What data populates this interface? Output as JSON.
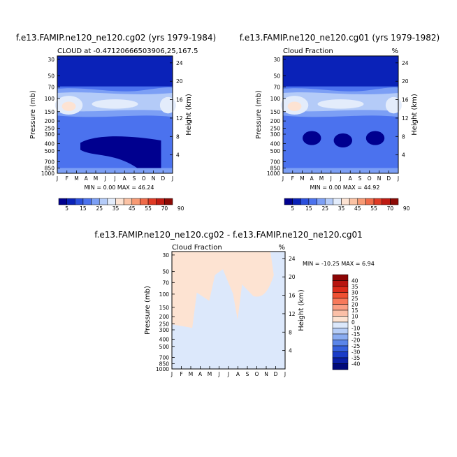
{
  "figure": {
    "panels": [
      {
        "title": "f.e13.FAMIP.ne120_ne120.cg02 (yrs 1979-1984)",
        "subtitle_left": "CLOUD at -0.47120666503906,25,167.5",
        "subtitle_right": "",
        "min_label": "MIN =",
        "min_value": "0.00",
        "max_label": "MAX =",
        "max_value": "46.24"
      },
      {
        "title": "f.e13.FAMIP.ne120_ne120.cg01 (yrs 1979-1982)",
        "subtitle_left": "Cloud Fraction",
        "subtitle_right": "%",
        "min_label": "MIN =",
        "min_value": "0.00",
        "max_label": "MAX =",
        "max_value": "44.92"
      },
      {
        "title": "f.e13.FAMIP.ne120_ne120.cg02 - f.e13.FAMIP.ne120_ne120.cg01",
        "subtitle_left": "Cloud Fraction",
        "subtitle_right": "%",
        "min_label": "MIN =",
        "min_value": "-10.25",
        "max_label": "MAX =",
        "max_value": "6.94"
      }
    ],
    "colorbar_top": {
      "labels": [
        "5",
        "15",
        "25",
        "35",
        "45",
        "55",
        "70",
        "90"
      ],
      "colors": [
        "#00008f",
        "#0a22b8",
        "#2b4fdc",
        "#4b72ee",
        "#7c9ff5",
        "#b4cbf8",
        "#e3ecfb",
        "#fde3d3",
        "#fbc2a4",
        "#f79a74",
        "#ef6a48",
        "#e03a25",
        "#bf1a12",
        "#8c0a05"
      ]
    },
    "colorbar_diff": {
      "labels": [
        "40",
        "35",
        "30",
        "25",
        "20",
        "15",
        "10",
        "0",
        "-10",
        "-15",
        "-20",
        "-25",
        "-30",
        "-35",
        "-40"
      ],
      "colors": [
        "#8c0505",
        "#b81510",
        "#db2b1a",
        "#ef5133",
        "#f7795a",
        "#fa9e83",
        "#fbc0a8",
        "#fde3d2",
        "#dce8fb",
        "#b6cdf7",
        "#8aacf1",
        "#5a85e9",
        "#3560dd",
        "#1a3cc8",
        "#0a1fa6",
        "#00097a"
      ]
    }
  },
  "chart_data": [
    {
      "type": "heatmap",
      "title": "f.e13.FAMIP.ne120_ne120.cg02 (yrs 1979-1984)",
      "xlabel": "",
      "ylabel": "Pressure (mb)",
      "y2label": "Height (km)",
      "x_ticks": [
        "J",
        "F",
        "M",
        "A",
        "M",
        "J",
        "J",
        "A",
        "S",
        "O",
        "N",
        "D",
        "J"
      ],
      "y_ticks": [
        30,
        50,
        70,
        100,
        150,
        200,
        250,
        300,
        400,
        500,
        700,
        850,
        1000
      ],
      "y2_ticks": [
        4,
        8,
        12,
        16,
        20,
        24
      ],
      "y_scale": "log",
      "min": 0.0,
      "max": 46.24
    },
    {
      "type": "heatmap",
      "title": "f.e13.FAMIP.ne120_ne120.cg01 (yrs 1979-1982)",
      "xlabel": "",
      "ylabel": "Pressure (mb)",
      "y2label": "Height (km)",
      "x_ticks": [
        "J",
        "F",
        "M",
        "A",
        "M",
        "J",
        "J",
        "A",
        "S",
        "O",
        "N",
        "D",
        "J"
      ],
      "y_ticks": [
        30,
        50,
        70,
        100,
        150,
        200,
        250,
        300,
        400,
        500,
        700,
        850,
        1000
      ],
      "y2_ticks": [
        4,
        8,
        12,
        16,
        20,
        24
      ],
      "y_scale": "log",
      "min": 0.0,
      "max": 44.92
    },
    {
      "type": "heatmap",
      "title": "f.e13.FAMIP.ne120_ne120.cg02 - f.e13.FAMIP.ne120_ne120.cg01",
      "xlabel": "",
      "ylabel": "Pressure (mb)",
      "y2label": "Height (km)",
      "x_ticks": [
        "J",
        "F",
        "M",
        "A",
        "M",
        "J",
        "J",
        "A",
        "S",
        "O",
        "N",
        "D",
        "J"
      ],
      "y_ticks": [
        30,
        50,
        70,
        100,
        150,
        200,
        250,
        300,
        400,
        500,
        700,
        850,
        1000
      ],
      "y2_ticks": [
        4,
        8,
        12,
        16,
        20,
        24
      ],
      "y_scale": "log",
      "min": -10.25,
      "max": 6.94
    }
  ]
}
